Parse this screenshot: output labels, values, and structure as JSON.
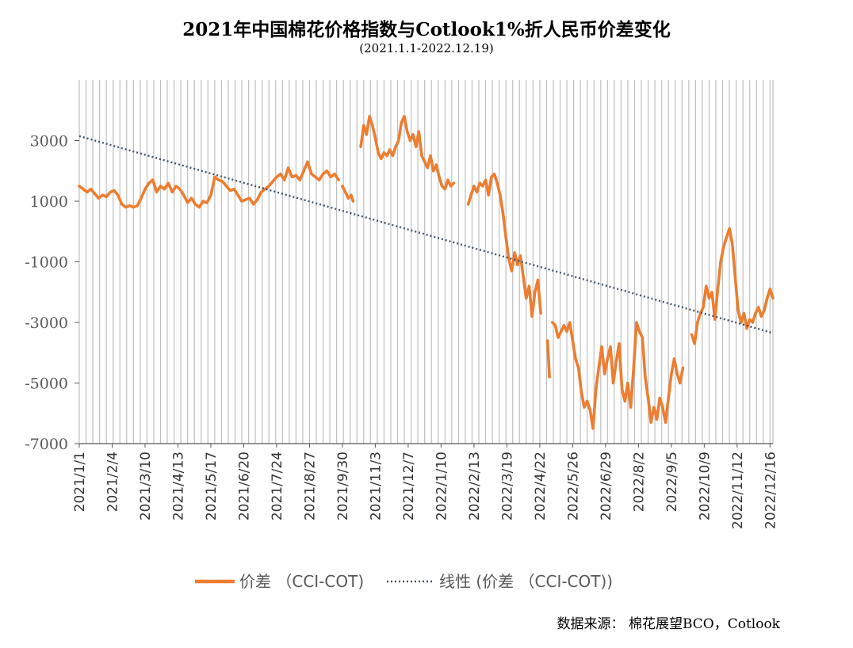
{
  "title": "2021年中国棉花价格指数与Cotlook1%折人民币价差变化",
  "subtitle": "(2021.1.1-2022.12.19)",
  "source": "数据来源： 棉花展望BCO，Cotlook",
  "colors": {
    "series": "#ED7D31",
    "trend": "#44546A",
    "grid": "#BFBFBF",
    "axis": "#595959"
  },
  "chart_data": {
    "type": "line",
    "x_type": "date",
    "ylim": [
      -7000,
      5000
    ],
    "yticks": [
      3000,
      1000,
      -1000,
      -3000,
      -5000,
      -7000
    ],
    "grid": "vertical",
    "legend_position": "bottom",
    "xlim": [
      "2021-01-01",
      "2022-12-19"
    ],
    "xticks": [
      "2021/1/1",
      "2021/2/4",
      "2021/3/10",
      "2021/4/13",
      "2021/5/17",
      "2021/6/20",
      "2021/7/24",
      "2021/8/27",
      "2021/9/30",
      "2021/11/3",
      "2021/12/7",
      "2022/1/10",
      "2022/2/13",
      "2022/3/19",
      "2022/4/22",
      "2022/5/26",
      "2022/6/29",
      "2022/8/2",
      "2022/9/5",
      "2022/10/9",
      "2022/11/12",
      "2022/12/16"
    ],
    "series": [
      {
        "name": "价差 （CCI-COT)",
        "style": "solid",
        "segments": [
          [
            [
              "2021-01-01",
              1500
            ],
            [
              "2021-01-05",
              1400
            ],
            [
              "2021-01-09",
              1300
            ],
            [
              "2021-01-13",
              1400
            ],
            [
              "2021-01-17",
              1250
            ],
            [
              "2021-01-21",
              1100
            ],
            [
              "2021-01-25",
              1200
            ],
            [
              "2021-01-29",
              1150
            ],
            [
              "2021-02-02",
              1300
            ],
            [
              "2021-02-06",
              1350
            ],
            [
              "2021-02-10",
              1200
            ],
            [
              "2021-02-14",
              900
            ],
            [
              "2021-02-18",
              800
            ],
            [
              "2021-02-22",
              850
            ],
            [
              "2021-02-26",
              800
            ],
            [
              "2021-03-02",
              850
            ],
            [
              "2021-03-06",
              1100
            ],
            [
              "2021-03-10",
              1400
            ],
            [
              "2021-03-14",
              1600
            ],
            [
              "2021-03-18",
              1700
            ],
            [
              "2021-03-22",
              1300
            ],
            [
              "2021-03-26",
              1500
            ],
            [
              "2021-03-30",
              1400
            ],
            [
              "2021-04-03",
              1600
            ],
            [
              "2021-04-07",
              1300
            ],
            [
              "2021-04-11",
              1500
            ],
            [
              "2021-04-15",
              1400
            ],
            [
              "2021-04-19",
              1200
            ],
            [
              "2021-04-23",
              950
            ],
            [
              "2021-04-27",
              1100
            ],
            [
              "2021-05-01",
              900
            ],
            [
              "2021-05-05",
              800
            ],
            [
              "2021-05-09",
              1000
            ],
            [
              "2021-05-13",
              950
            ],
            [
              "2021-05-17",
              1200
            ],
            [
              "2021-05-21",
              1800
            ],
            [
              "2021-05-25",
              1700
            ],
            [
              "2021-05-29",
              1650
            ],
            [
              "2021-06-02",
              1500
            ],
            [
              "2021-06-06",
              1350
            ],
            [
              "2021-06-10",
              1400
            ],
            [
              "2021-06-14",
              1200
            ],
            [
              "2021-06-18",
              1000
            ],
            [
              "2021-06-22",
              1050
            ],
            [
              "2021-06-26",
              1100
            ],
            [
              "2021-06-30",
              900
            ],
            [
              "2021-07-04",
              1050
            ],
            [
              "2021-07-08",
              1300
            ],
            [
              "2021-07-12",
              1400
            ],
            [
              "2021-07-16",
              1500
            ],
            [
              "2021-07-20",
              1650
            ],
            [
              "2021-07-24",
              1800
            ],
            [
              "2021-07-28",
              1900
            ],
            [
              "2021-08-01",
              1700
            ],
            [
              "2021-08-05",
              2100
            ],
            [
              "2021-08-09",
              1800
            ],
            [
              "2021-08-13",
              1850
            ],
            [
              "2021-08-17",
              1700
            ],
            [
              "2021-08-21",
              2000
            ],
            [
              "2021-08-25",
              2300
            ],
            [
              "2021-08-29",
              1900
            ],
            [
              "2021-09-02",
              1800
            ],
            [
              "2021-09-06",
              1700
            ],
            [
              "2021-09-10",
              1900
            ],
            [
              "2021-09-14",
              2000
            ],
            [
              "2021-09-18",
              1800
            ],
            [
              "2021-09-22",
              1900
            ],
            [
              "2021-09-26",
              1700
            ]
          ],
          [
            [
              "2021-09-30",
              1500
            ],
            [
              "2021-10-03",
              1300
            ],
            [
              "2021-10-06",
              1100
            ],
            [
              "2021-10-09",
              1200
            ],
            [
              "2021-10-11",
              1000
            ]
          ],
          [
            [
              "2021-10-19",
              2800
            ],
            [
              "2021-10-22",
              3500
            ],
            [
              "2021-10-25",
              3200
            ],
            [
              "2021-10-28",
              3800
            ],
            [
              "2021-10-31",
              3500
            ],
            [
              "2021-11-03",
              3100
            ],
            [
              "2021-11-06",
              2600
            ],
            [
              "2021-11-09",
              2400
            ],
            [
              "2021-11-12",
              2600
            ],
            [
              "2021-11-15",
              2500
            ],
            [
              "2021-11-18",
              2700
            ],
            [
              "2021-11-21",
              2500
            ],
            [
              "2021-11-24",
              2800
            ],
            [
              "2021-11-27",
              3000
            ],
            [
              "2021-11-30",
              3600
            ],
            [
              "2021-12-03",
              3800
            ],
            [
              "2021-12-06",
              3300
            ],
            [
              "2021-12-09",
              3000
            ],
            [
              "2021-12-12",
              3200
            ],
            [
              "2021-12-15",
              2800
            ],
            [
              "2021-12-18",
              3300
            ],
            [
              "2021-12-21",
              2500
            ],
            [
              "2021-12-24",
              2300
            ],
            [
              "2021-12-27",
              2100
            ],
            [
              "2021-12-30",
              2500
            ],
            [
              "2022-01-02",
              2000
            ],
            [
              "2022-01-05",
              2200
            ],
            [
              "2022-01-08",
              1800
            ],
            [
              "2022-01-11",
              1500
            ],
            [
              "2022-01-14",
              1400
            ],
            [
              "2022-01-17",
              1700
            ],
            [
              "2022-01-20",
              1500
            ],
            [
              "2022-01-23",
              1600
            ]
          ],
          [
            [
              "2022-02-07",
              900
            ],
            [
              "2022-02-10",
              1200
            ],
            [
              "2022-02-13",
              1500
            ],
            [
              "2022-02-16",
              1300
            ],
            [
              "2022-02-19",
              1600
            ],
            [
              "2022-02-22",
              1500
            ],
            [
              "2022-02-25",
              1700
            ],
            [
              "2022-02-28",
              1200
            ],
            [
              "2022-03-03",
              1800
            ],
            [
              "2022-03-06",
              1900
            ],
            [
              "2022-03-09",
              1600
            ],
            [
              "2022-03-12",
              1200
            ],
            [
              "2022-03-15",
              600
            ],
            [
              "2022-03-18",
              -200
            ],
            [
              "2022-03-21",
              -900
            ],
            [
              "2022-03-24",
              -1300
            ],
            [
              "2022-03-27",
              -700
            ],
            [
              "2022-03-30",
              -1100
            ],
            [
              "2022-04-02",
              -800
            ],
            [
              "2022-04-05",
              -1500
            ],
            [
              "2022-04-08",
              -2200
            ],
            [
              "2022-04-11",
              -1800
            ],
            [
              "2022-04-14",
              -2800
            ],
            [
              "2022-04-17",
              -2000
            ],
            [
              "2022-04-20",
              -1600
            ],
            [
              "2022-04-23",
              -2700
            ]
          ],
          [
            [
              "2022-04-30",
              -3600
            ],
            [
              "2022-05-02",
              -4800
            ]
          ],
          [
            [
              "2022-05-05",
              -3000
            ],
            [
              "2022-05-08",
              -3100
            ],
            [
              "2022-05-11",
              -3500
            ],
            [
              "2022-05-14",
              -3300
            ],
            [
              "2022-05-17",
              -3100
            ],
            [
              "2022-05-20",
              -3300
            ],
            [
              "2022-05-23",
              -3000
            ],
            [
              "2022-05-26",
              -3600
            ],
            [
              "2022-05-29",
              -4200
            ],
            [
              "2022-06-01",
              -4500
            ],
            [
              "2022-06-04",
              -5300
            ],
            [
              "2022-06-07",
              -5800
            ],
            [
              "2022-06-10",
              -5600
            ],
            [
              "2022-06-13",
              -5900
            ],
            [
              "2022-06-16",
              -6500
            ],
            [
              "2022-06-19",
              -5200
            ],
            [
              "2022-06-22",
              -4500
            ],
            [
              "2022-06-25",
              -3800
            ],
            [
              "2022-06-28",
              -4700
            ],
            [
              "2022-07-01",
              -4200
            ],
            [
              "2022-07-04",
              -3800
            ],
            [
              "2022-07-07",
              -5000
            ],
            [
              "2022-07-10",
              -4300
            ],
            [
              "2022-07-13",
              -3700
            ],
            [
              "2022-07-16",
              -5200
            ],
            [
              "2022-07-19",
              -5600
            ],
            [
              "2022-07-22",
              -5000
            ],
            [
              "2022-07-25",
              -5800
            ],
            [
              "2022-07-28",
              -4500
            ],
            [
              "2022-07-31",
              -3000
            ],
            [
              "2022-08-03",
              -3300
            ],
            [
              "2022-08-06",
              -3500
            ],
            [
              "2022-08-09",
              -4800
            ],
            [
              "2022-08-12",
              -5500
            ],
            [
              "2022-08-15",
              -6300
            ],
            [
              "2022-08-18",
              -5800
            ],
            [
              "2022-08-21",
              -6200
            ],
            [
              "2022-08-24",
              -5500
            ],
            [
              "2022-08-27",
              -5800
            ],
            [
              "2022-08-30",
              -6300
            ],
            [
              "2022-09-02",
              -5500
            ],
            [
              "2022-09-05",
              -4700
            ],
            [
              "2022-09-08",
              -4200
            ],
            [
              "2022-09-11",
              -4700
            ],
            [
              "2022-09-14",
              -5000
            ],
            [
              "2022-09-17",
              -4500
            ]
          ],
          [
            [
              "2022-09-26",
              -3400
            ],
            [
              "2022-09-29",
              -3700
            ],
            [
              "2022-10-02",
              -3000
            ],
            [
              "2022-10-05",
              -2700
            ],
            [
              "2022-10-08",
              -2500
            ],
            [
              "2022-10-11",
              -1800
            ],
            [
              "2022-10-14",
              -2200
            ],
            [
              "2022-10-17",
              -2000
            ],
            [
              "2022-10-20",
              -2900
            ],
            [
              "2022-10-23",
              -1900
            ],
            [
              "2022-10-26",
              -1000
            ],
            [
              "2022-10-29",
              -500
            ],
            [
              "2022-11-01",
              -200
            ],
            [
              "2022-11-04",
              100
            ],
            [
              "2022-11-07",
              -400
            ],
            [
              "2022-11-10",
              -1500
            ],
            [
              "2022-11-13",
              -2600
            ],
            [
              "2022-11-16",
              -3000
            ],
            [
              "2022-11-19",
              -2700
            ],
            [
              "2022-11-22",
              -3200
            ],
            [
              "2022-11-25",
              -2900
            ],
            [
              "2022-11-28",
              -3000
            ],
            [
              "2022-12-01",
              -2700
            ],
            [
              "2022-12-04",
              -2500
            ],
            [
              "2022-12-07",
              -2800
            ],
            [
              "2022-12-10",
              -2600
            ],
            [
              "2022-12-13",
              -2200
            ],
            [
              "2022-12-16",
              -1900
            ],
            [
              "2022-12-19",
              -2200
            ]
          ]
        ]
      },
      {
        "name": "线性 (价差 （CCI-COT))",
        "style": "dotted",
        "segments": [
          [
            [
              "2021-01-01",
              3150
            ],
            [
              "2022-12-19",
              -3350
            ]
          ]
        ]
      }
    ]
  }
}
